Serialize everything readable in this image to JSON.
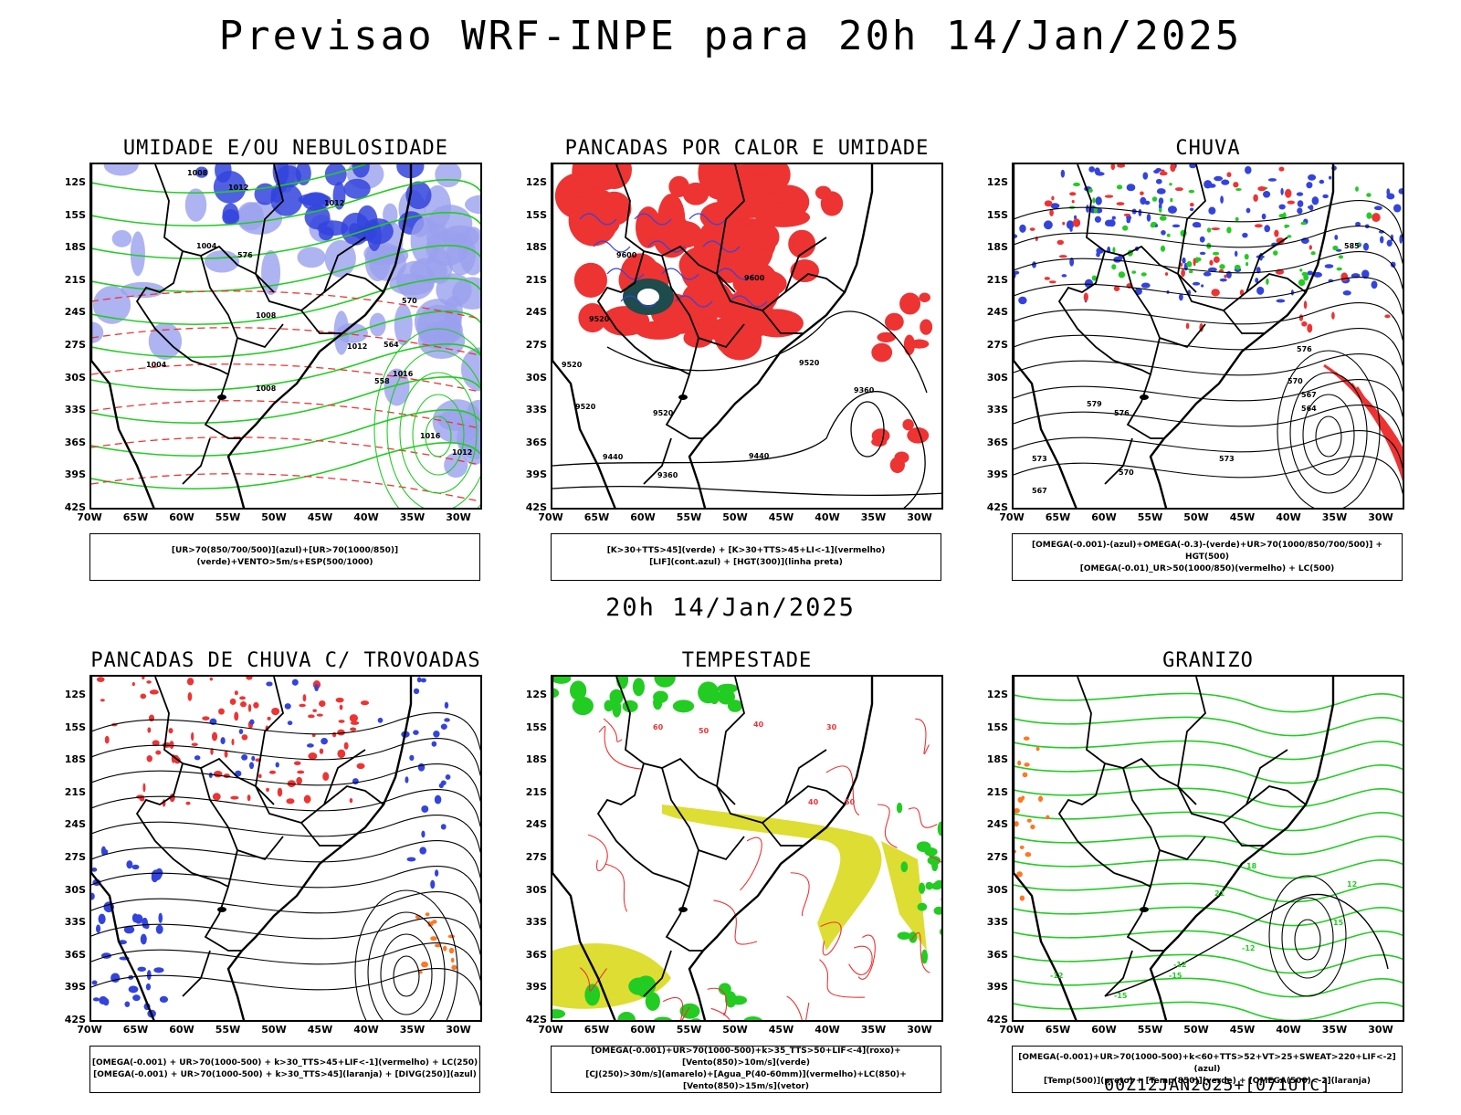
{
  "title": "Previsao WRF-INPE  para 20h 14/Jan/2025",
  "middle_title": "20h 14/Jan/2025",
  "footer": "00Z12JAN2025+[071UTC]",
  "lat_ticks": [
    "12S",
    "15S",
    "18S",
    "21S",
    "24S",
    "27S",
    "30S",
    "33S",
    "36S",
    "39S",
    "42S"
  ],
  "lon_ticks": [
    "70W",
    "65W",
    "60W",
    "55W",
    "50W",
    "45W",
    "40W",
    "35W",
    "30W"
  ],
  "colors": {
    "blue": "#3344dd",
    "light_blue": "#9aa0ee",
    "green": "#22cc22",
    "red": "#ee3333",
    "dark_teal": "#1e4b4b",
    "yellow": "#dddd33",
    "orange": "#ff7722"
  },
  "panels": [
    {
      "title": "UMIDADE E/OU NEBULOSIDADE",
      "legend": [
        "[UR>70(850/700/500)](azul)+[UR>70(1000/850)](verde)+VENTO>5m/s+ESP(500/1000)"
      ],
      "labels": [
        "1008",
        "1012",
        "1004",
        "1008",
        "1012",
        "1016",
        "1004",
        "1008",
        "1012",
        "570",
        "564",
        "558",
        "576",
        "1016",
        "1012"
      ]
    },
    {
      "title": "PANCADAS POR CALOR E UMIDADE",
      "legend": [
        "[K>30+TTS>45](verde) + [K>30+TTS>45+LI<-1](vermelho)",
        "[LIF](cont.azul) + [HGT(300)](linha preta)"
      ],
      "labels": [
        "9600",
        "9600",
        "9520",
        "9520",
        "9520",
        "9520",
        "9440",
        "9440",
        "9360",
        "9360",
        "9520"
      ]
    },
    {
      "title": "CHUVA",
      "legend": [
        "[OMEGA(-0.001)-(azul)+OMEGA(-0.3)-(verde)+UR>70(1000/850/700/500)] + HGT(500)",
        "[OMEGA(-0.01)_UR>50(1000/850)(vermelho) + LC(500)"
      ],
      "labels": [
        "585",
        "579",
        "576",
        "573",
        "570",
        "567",
        "573",
        "570",
        "567",
        "564",
        "576"
      ]
    },
    {
      "title": "PANCADAS DE CHUVA C/ TROVOADAS",
      "legend": [
        "[OMEGA(-0.001) + UR>70(1000-500) + k>30_TTS>45+LIF<-1](vermelho) + LC(250)",
        "[OMEGA(-0.001) + UR>70(1000-500) + k>30_TTS>45](laranja) + [DIVG(250)](azul)"
      ],
      "labels": []
    },
    {
      "title": "TEMPESTADE",
      "legend": [
        "[OMEGA(-0.001)+UR>70(1000-500)+k>35_TTS>50+LIF<-4](roxo)+[Vento(850)>10m/s](verde)",
        "[CJ(250)>30m/s](amarelo)+[Agua_P(40-60mm)](vermelho)+LC(850)+[Vento(850)>15m/s](vetor)"
      ],
      "labels": [
        "60",
        "50",
        "40",
        "30",
        "50",
        "40"
      ]
    },
    {
      "title": "GRANIZO",
      "legend": [
        "[OMEGA(-0.001)+UR>70(1000-500)+k<60+TTS>52+VT>25+SWEAT>220+LIF<-2](azul)",
        "[Temp(500)](preto) + [Temp(850)](verde) + [OMEGA(500)<-2](laranja)"
      ],
      "labels": [
        "-12",
        "-15",
        "-12",
        "12",
        "15",
        "18",
        "21",
        "-12",
        "-15"
      ]
    }
  ]
}
